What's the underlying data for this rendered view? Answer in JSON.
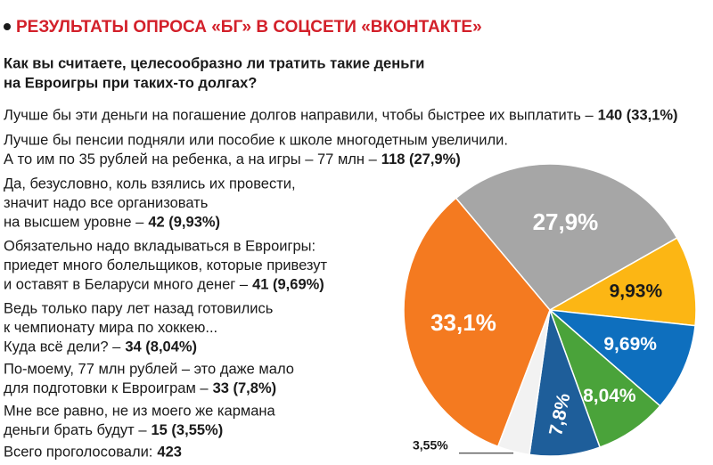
{
  "header": {
    "title": "РЕЗУЛЬТАТЫ ОПРОСА «БГ» В СОЦСЕТИ «ВКОНТАКТЕ»"
  },
  "question": [
    "Как вы считаете, целесообразно ли тратить такие деньги",
    "на Евроигры при таких-то долгах?"
  ],
  "answers": [
    {
      "lines": [
        "Лучше бы эти деньги на погашение долгов направили, чтобы быстрее их выплатить –"
      ],
      "result": "140 (33,1%)"
    },
    {
      "lines": [
        "Лучше бы пенсии подняли или пособие к школе многодетным увеличили.",
        "А то им по 35 рублей на ребенка, а на игры – 77 млн –"
      ],
      "result": "118 (27,9%)"
    },
    {
      "lines": [
        "Да, безусловно, коль взялись их провести,",
        "значит надо все организовать",
        "на высшем уровне –"
      ],
      "result": "42 (9,93%)"
    },
    {
      "lines": [
        "Обязательно надо вкладываться в Евроигры:",
        "приедет много болельщиков, которые привезут",
        "и оставят в Беларуси много денег –"
      ],
      "result": "41 (9,69%)"
    },
    {
      "lines": [
        "Ведь только пару лет назад готовились",
        "к чемпионату мира по хоккею...",
        "Куда всё дели? –"
      ],
      "result": "34 (8,04%)"
    },
    {
      "lines": [
        "По-моему, 77 млн рублей – это даже мало",
        "для подготовки к Евроиграм –"
      ],
      "result": "33 (7,8%)"
    },
    {
      "lines": [
        "Мне все равно, не из моего же кармана",
        "деньги брать будут –"
      ],
      "result": "15 (3,55%)"
    }
  ],
  "total": {
    "label": "Всего проголосовали:",
    "value": "423"
  },
  "chart_data": {
    "type": "pie",
    "values": [
      27.9,
      9.93,
      9.69,
      8.04,
      7.8,
      3.55,
      33.1
    ],
    "value_labels": [
      "27,9%",
      "9,93%",
      "9,69%",
      "8,04%",
      "7,8%",
      "3,55%",
      "33,1%"
    ],
    "colors": [
      "#a6a6a6",
      "#fcb614",
      "#0e6fbe",
      "#4aa33a",
      "#1e5e9a",
      "#f2f2f2",
      "#f47a20"
    ]
  }
}
